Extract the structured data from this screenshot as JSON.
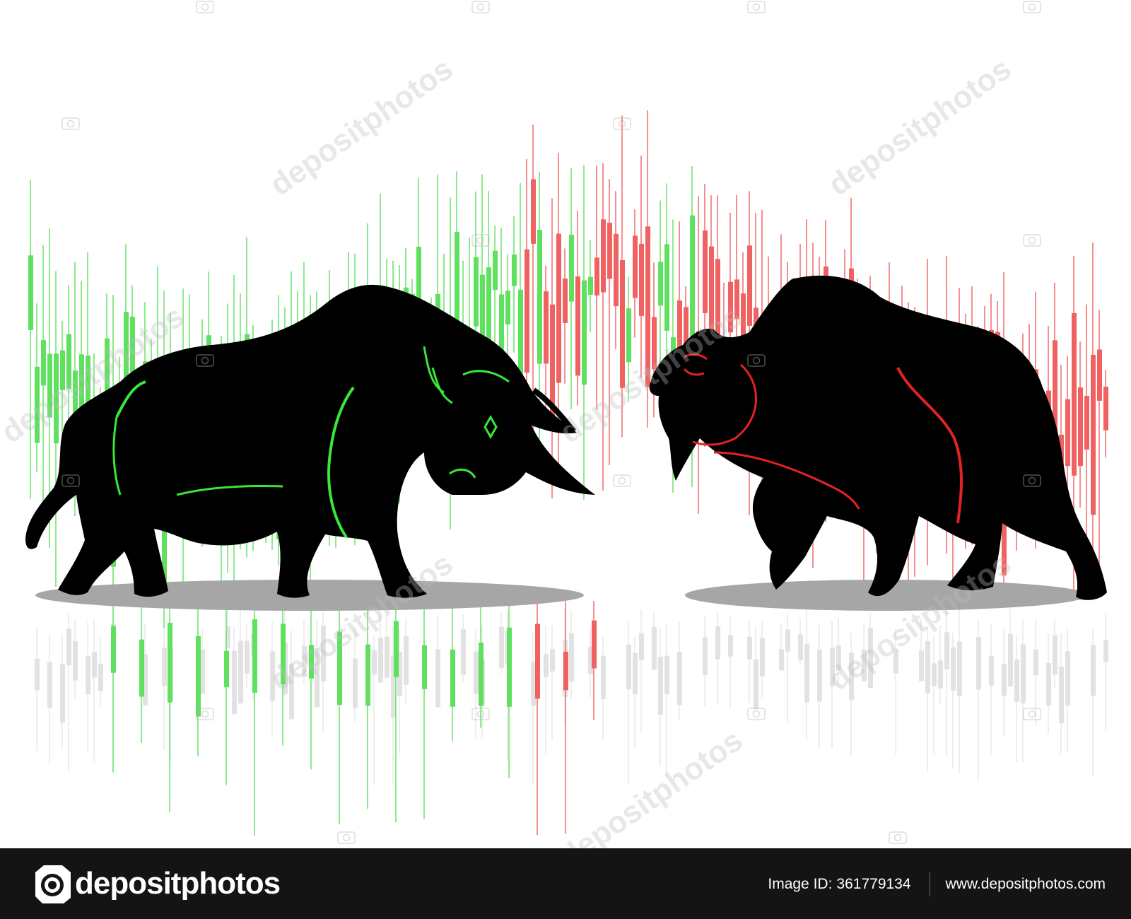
{
  "scene": {
    "bull": {
      "icon": "bull-silhouette",
      "body_color": "#000000",
      "accent_color": "#39e639"
    },
    "bear": {
      "icon": "bear-silhouette",
      "body_color": "#000000",
      "accent_color": "#e52222"
    },
    "candles": {
      "up_color": "#5fe05f",
      "down_color": "#f06262",
      "reflection_color": "#e2e2e2",
      "shadow_color": "#a6a6a6"
    }
  },
  "watermark": {
    "text": "depositphotos"
  },
  "footer": {
    "brand": "depositphotos",
    "image_id_label": "Image ID:",
    "image_id": "361779134",
    "url": "www.depositphotos.com",
    "background": "#141414"
  }
}
